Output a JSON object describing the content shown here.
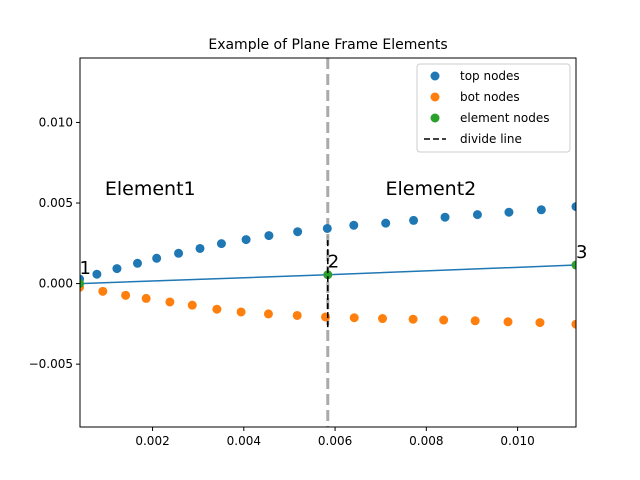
{
  "chart_data": {
    "type": "scatter",
    "title": "Example of Plane Frame Elements",
    "xlabel": "",
    "ylabel": "",
    "xlim": [
      0.00041,
      0.01128
    ],
    "ylim": [
      -0.0089,
      0.014
    ],
    "xticks": [
      0.002,
      0.004,
      0.006,
      0.008,
      0.01
    ],
    "xtick_labels": [
      "0.002",
      "0.004",
      "0.006",
      "0.008",
      "0.010"
    ],
    "yticks": [
      -0.005,
      0.0,
      0.005,
      0.01
    ],
    "ytick_labels": [
      "−0.005",
      "0.000",
      "0.005",
      "0.010"
    ],
    "grid": false,
    "legend_position": "top-right",
    "series": [
      {
        "name": "top nodes",
        "kind": "scatter",
        "color": "#1f77b4",
        "x": [
          0.0004,
          0.00078,
          0.00122,
          0.00167,
          0.00209,
          0.00257,
          0.00304,
          0.00351,
          0.00405,
          0.00455,
          0.00518,
          0.00583,
          0.00641,
          0.00711,
          0.00772,
          0.00841,
          0.00912,
          0.00981,
          0.01052,
          0.01128
        ],
        "y": [
          0.00028,
          0.00058,
          0.00093,
          0.00126,
          0.00157,
          0.00188,
          0.00218,
          0.00248,
          0.00273,
          0.00298,
          0.00322,
          0.00342,
          0.00362,
          0.00375,
          0.00392,
          0.00412,
          0.00428,
          0.00443,
          0.00458,
          0.00478
        ]
      },
      {
        "name": "bot nodes",
        "kind": "scatter",
        "color": "#ff7f0e",
        "x": [
          0.0004,
          0.00091,
          0.00141,
          0.00186,
          0.00238,
          0.00287,
          0.00341,
          0.00394,
          0.00454,
          0.00517,
          0.00579,
          0.00642,
          0.00704,
          0.00771,
          0.00838,
          0.00907,
          0.00979,
          0.01049,
          0.01128
        ],
        "y": [
          -0.00023,
          -0.00048,
          -0.00073,
          -0.00092,
          -0.00114,
          -0.00134,
          -0.00159,
          -0.00176,
          -0.00188,
          -0.00198,
          -0.00207,
          -0.00212,
          -0.00217,
          -0.00221,
          -0.00226,
          -0.00231,
          -0.00237,
          -0.00242,
          -0.00252
        ]
      },
      {
        "name": "element nodes",
        "kind": "scatter",
        "color": "#2ca02c",
        "x": [
          0.0004,
          0.00584,
          0.01128
        ],
        "y": [
          0.0,
          0.00055,
          0.00115
        ]
      },
      {
        "name": "divide line",
        "kind": "dashed-line",
        "color": "#000000",
        "x": [
          0.00584,
          0.00584
        ],
        "y": [
          -0.0027,
          0.0029
        ]
      }
    ],
    "element_line": {
      "color": "#1f77b4",
      "x": [
        0.0004,
        0.00584,
        0.01128
      ],
      "y": [
        0.0,
        0.00055,
        0.00115
      ]
    },
    "boundary_line": {
      "color": "#aaaaaa",
      "x": 0.00584
    },
    "annotations": [
      {
        "text": "1",
        "x": 0.0004,
        "y": 0.0006,
        "size": "medium"
      },
      {
        "text": "2",
        "x": 0.00584,
        "y": 0.001,
        "size": "medium"
      },
      {
        "text": "3",
        "x": 0.01128,
        "y": 0.0016,
        "size": "medium"
      },
      {
        "text": "Element1",
        "x": 0.00195,
        "y": 0.0055,
        "size": "large"
      },
      {
        "text": "Element2",
        "x": 0.0081,
        "y": 0.0055,
        "size": "large"
      }
    ]
  }
}
